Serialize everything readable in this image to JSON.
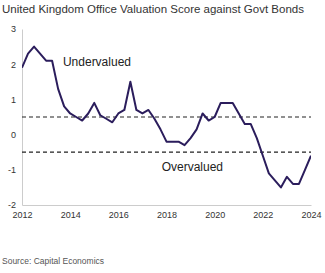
{
  "chart_data": {
    "type": "line",
    "title": "United Kingdom Office Valuation Score against Govt Bonds",
    "source": "Source: Capital Economics",
    "x": [
      2012,
      2012.25,
      2012.5,
      2012.75,
      2013,
      2013.25,
      2013.5,
      2013.75,
      2014,
      2014.25,
      2014.5,
      2014.75,
      2015,
      2015.25,
      2015.5,
      2015.75,
      2016,
      2016.25,
      2016.5,
      2016.75,
      2017,
      2017.25,
      2017.5,
      2017.75,
      2018,
      2018.25,
      2018.5,
      2018.75,
      2019,
      2019.25,
      2019.5,
      2019.75,
      2020,
      2020.25,
      2020.5,
      2020.75,
      2021,
      2021.25,
      2021.5,
      2021.75,
      2022,
      2022.25,
      2022.5,
      2022.75,
      2023,
      2023.25,
      2023.5,
      2023.75,
      2024
    ],
    "series": [
      {
        "color": "#2b1d5c",
        "values": [
          1.9,
          2.3,
          2.5,
          2.3,
          2.1,
          2.1,
          1.3,
          0.8,
          0.6,
          0.5,
          0.4,
          0.6,
          0.9,
          0.55,
          0.45,
          0.35,
          0.6,
          0.7,
          1.5,
          0.7,
          0.6,
          0.7,
          0.45,
          0.15,
          -0.2,
          -0.2,
          -0.2,
          -0.3,
          -0.1,
          0.15,
          0.6,
          0.4,
          0.5,
          0.9,
          0.9,
          0.9,
          0.6,
          0.3,
          0.3,
          -0.1,
          -0.6,
          -1.1,
          -1.3,
          -1.5,
          -1.2,
          -1.4,
          -1.4,
          -1.0,
          -0.6
        ]
      }
    ],
    "xlim": [
      2012,
      2024
    ],
    "xticks": [
      2012,
      2014,
      2016,
      2018,
      2020,
      2022,
      2024
    ],
    "ylim": [
      -2,
      3
    ],
    "yticks": [
      -2,
      -1,
      0,
      1,
      2,
      3
    ],
    "hlines": [
      0.5,
      -0.5
    ],
    "annotations": [
      {
        "text": "Undervalued",
        "x": 2013.7,
        "y": 2.05
      },
      {
        "text": "Overvalued",
        "x": 2017.8,
        "y": -0.95
      }
    ],
    "grid": false
  }
}
